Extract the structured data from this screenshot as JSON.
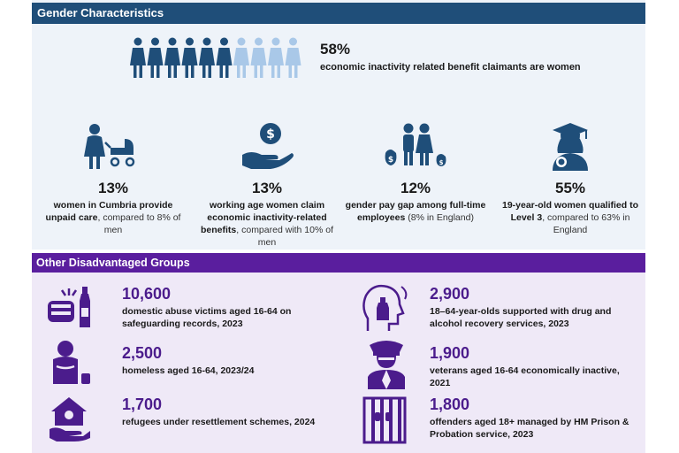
{
  "gender": {
    "header": "Gender Characteristics",
    "headline_pct": "58%",
    "headline_desc": "economic inactivity related benefit claimants are women",
    "people_icons": {
      "dark_count": 6,
      "light_count": 4,
      "dark_color": "#1f4e79",
      "light_color": "#a9c8e8"
    },
    "columns": [
      {
        "icon": "mother-with-pram-icon",
        "pct": "13%",
        "bold": "women in Cumbria provide unpaid care",
        "rest": ", compared to 8% of men"
      },
      {
        "icon": "hand-holding-coin-icon",
        "pct": "13%",
        "bold": "working age women claim economic inactivity-related benefits",
        "rest": ", compared with 10% of men"
      },
      {
        "icon": "pay-gap-people-icon",
        "pct": "12%",
        "bold": "gender pay gap among full-time employees",
        "rest": " (8% in England)"
      },
      {
        "icon": "graduate-icon",
        "pct": "55%",
        "bold": "19-year-old women qualified to Level 3",
        "rest": ", compared to 63% in England"
      }
    ]
  },
  "other": {
    "header": "Other Disadvantaged Groups",
    "items": [
      {
        "icon": "domestic-abuse-icon",
        "num": "10,600",
        "label": "domestic abuse victims aged 16-64 on safeguarding records, 2023"
      },
      {
        "icon": "drug-recovery-icon",
        "num": "2,900",
        "label": "18–64-year-olds supported with drug and alcohol recovery services, 2023"
      },
      {
        "icon": "homeless-person-icon",
        "num": "2,500",
        "label": "homeless aged 16-64, 2023/24"
      },
      {
        "icon": "veteran-officer-icon",
        "num": "1,900",
        "label": "veterans aged 16-64 economically inactive, 2021"
      },
      {
        "icon": "refugee-home-icon",
        "num": "1,700",
        "label": "refugees under resettlement schemes, 2024"
      },
      {
        "icon": "prison-bars-icon",
        "num": "1,800",
        "label": "offenders aged 18+ managed by HM Prison & Probation service, 2023"
      }
    ]
  },
  "colors": {
    "navy": "#1f4e79",
    "purple": "#5a1e9e",
    "number_purple": "#4b1c8c"
  }
}
